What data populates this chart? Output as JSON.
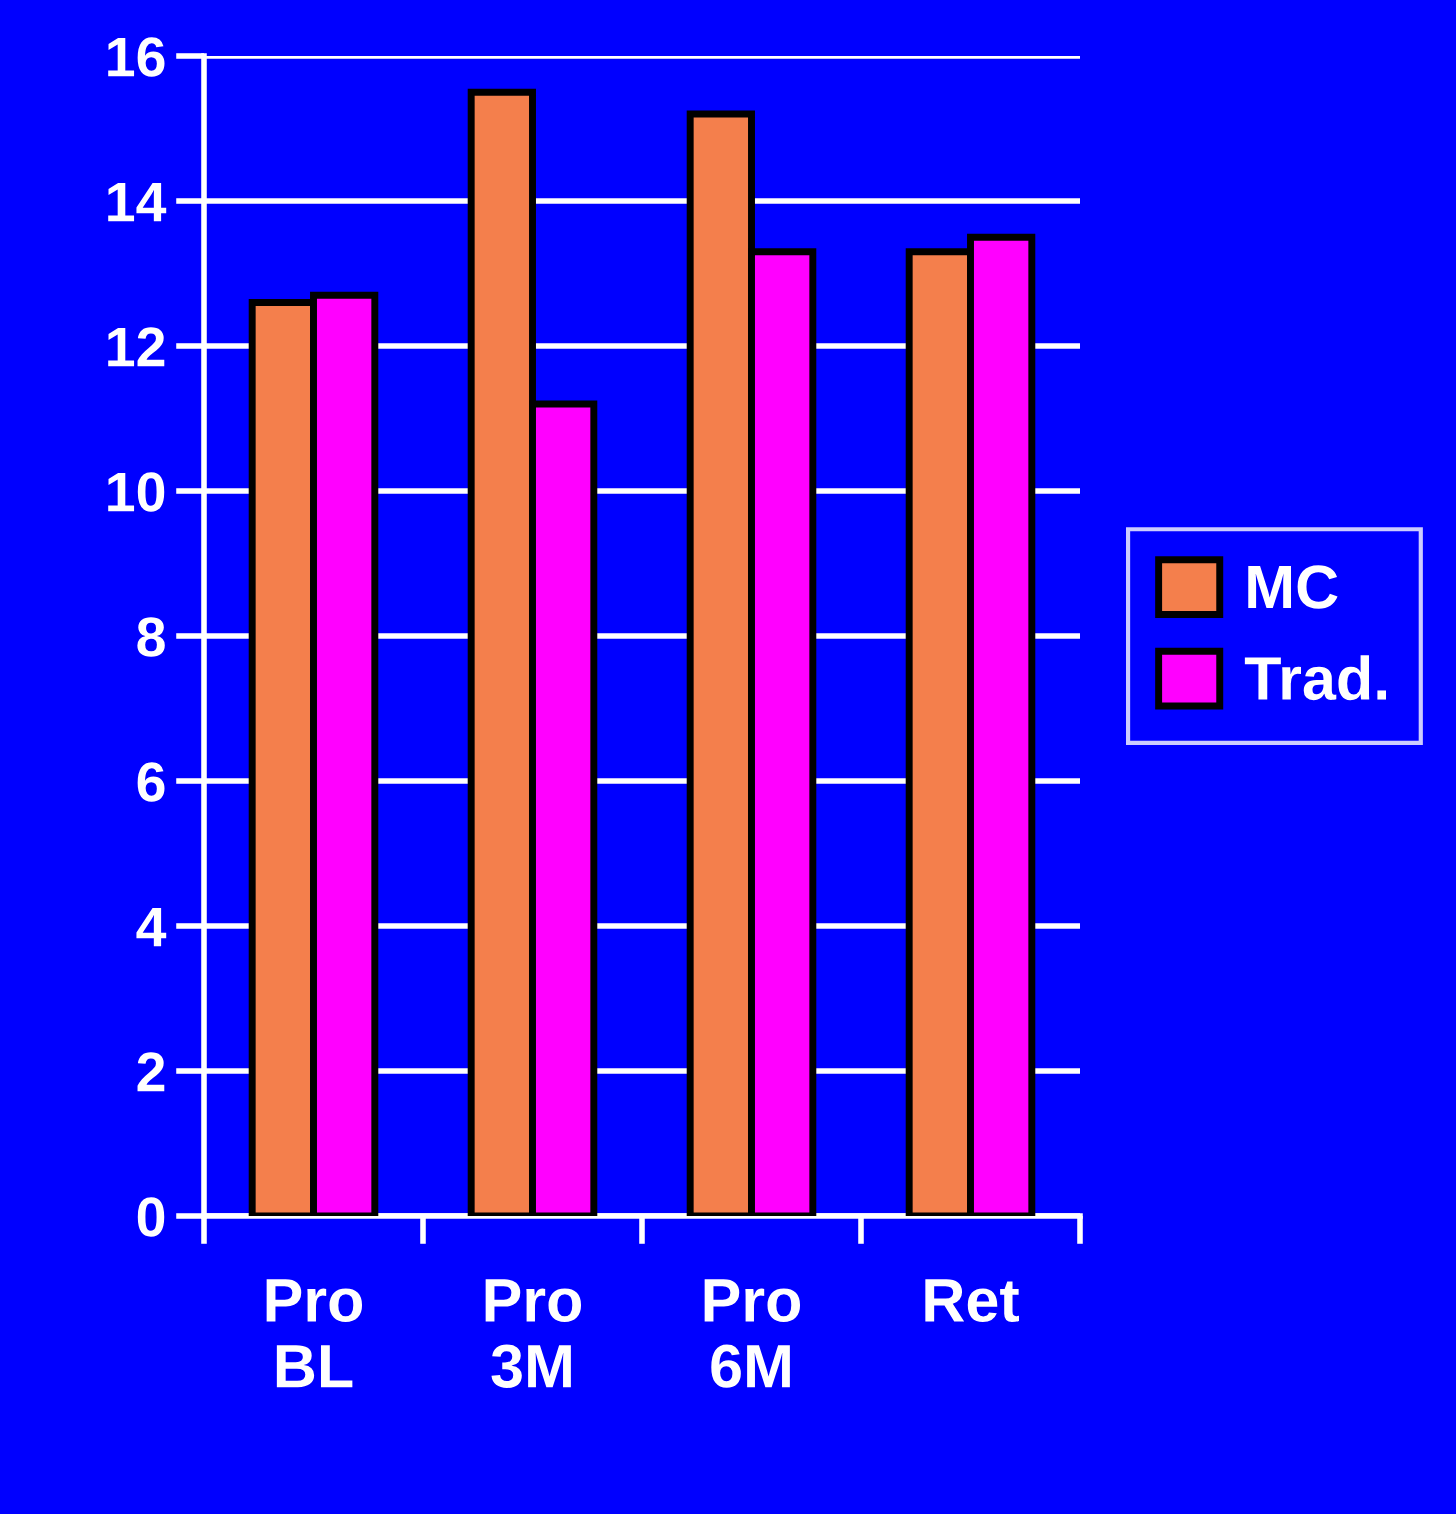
{
  "chart_data": {
    "type": "bar",
    "categories": [
      "Pro\nBL",
      "Pro\n3M",
      "Pro\n6M",
      "Ret"
    ],
    "series": [
      {
        "name": "MC",
        "color": "#f47f4c",
        "values": [
          12.6,
          15.5,
          15.2,
          13.3
        ]
      },
      {
        "name": "Trad.",
        "color": "#ff00ff",
        "values": [
          12.7,
          11.2,
          13.3,
          13.5
        ]
      }
    ],
    "ylim": [
      0,
      16
    ],
    "yticks": [
      0,
      2,
      4,
      6,
      8,
      10,
      12,
      14,
      16
    ],
    "grid": "y",
    "legend": "right"
  }
}
